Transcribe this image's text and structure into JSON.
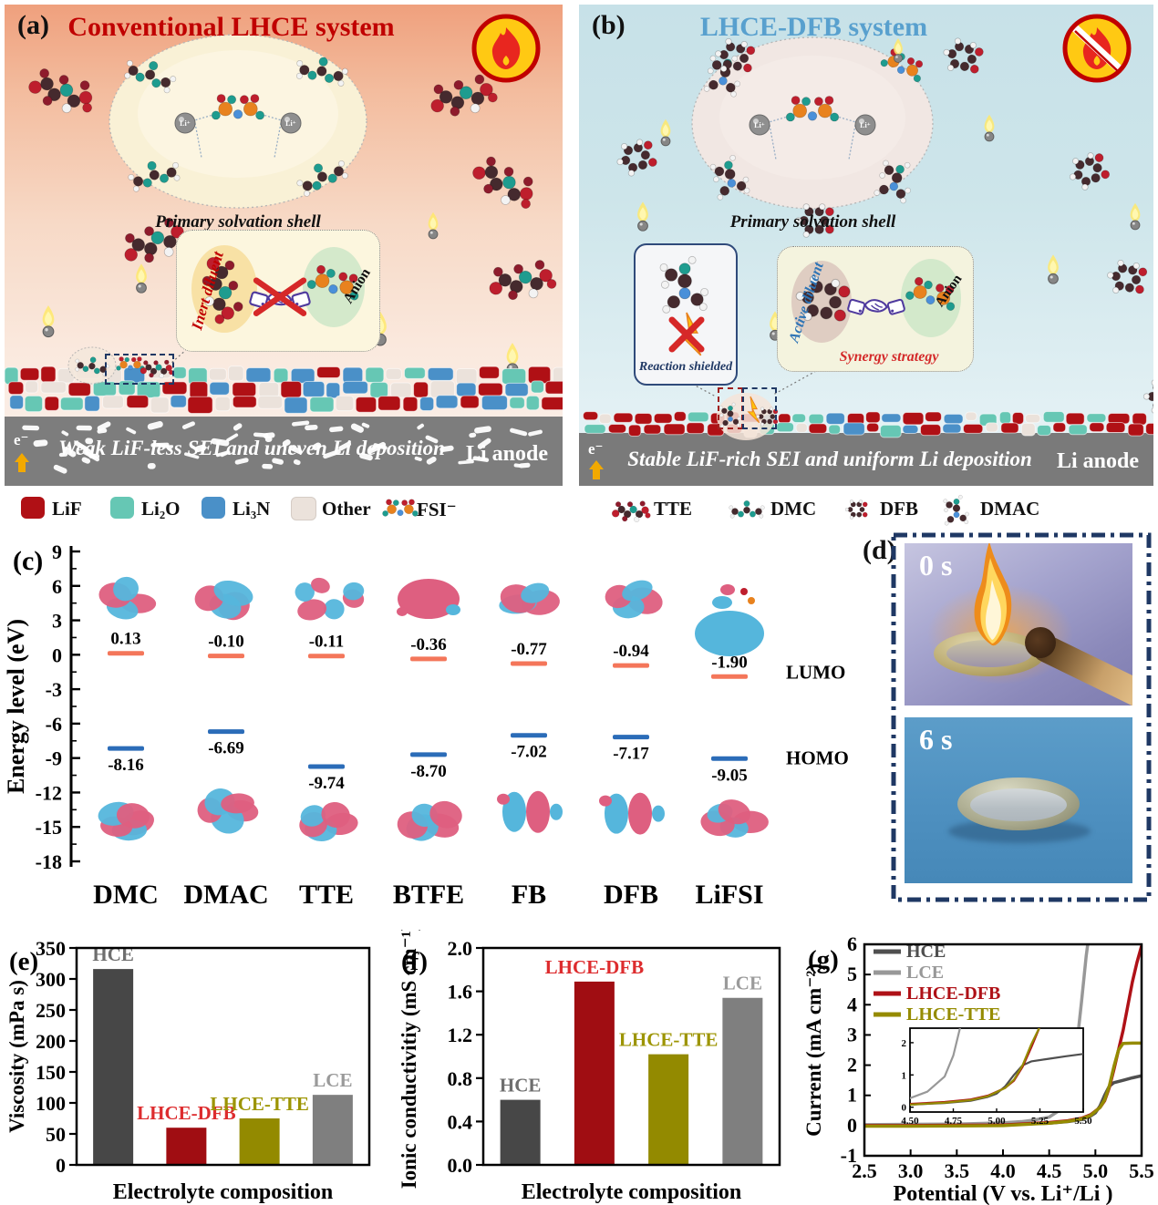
{
  "panel_a": {
    "label": "(a)",
    "title": "Conventional LHCE system",
    "title_color": "#C00000",
    "solvation_shell_label": "Primary solvation shell",
    "inert_diluent_label": "Inert diluent",
    "anion_label": "Anion",
    "sei_caption": "Weak LiF-less SEI and uneven Li deposition",
    "anode_label": "Li anode",
    "electron_label": "e⁻",
    "legend": [
      {
        "label": "LiF",
        "color": "#B01015"
      },
      {
        "label": "Li₂O",
        "color": "#66C7B4"
      },
      {
        "label": "Li₃N",
        "color": "#4A90C8"
      },
      {
        "label": "Other",
        "color": "#EBE2DB"
      },
      {
        "label": "FSI⁻",
        "icon": "fsi-molecule"
      }
    ]
  },
  "panel_b": {
    "label": "(b)",
    "title": "LHCE-DFB system",
    "title_color": "#58A0CE",
    "solvation_shell_label": "Primary solvation shell",
    "reaction_shielded_label": "Reaction shielded",
    "active_diluent_label": "Active diluent",
    "anion_label": "Anion",
    "synergy_label": "Synergy strategy",
    "sei_caption": "Stable LiF-rich SEI and uniform Li deposition",
    "anode_label": "Li anode",
    "electron_label": "e⁻",
    "legend": [
      {
        "label": "TTE",
        "icon": "tte-molecule"
      },
      {
        "label": "DMC",
        "icon": "dmc-molecule"
      },
      {
        "label": "DFB",
        "icon": "dfb-molecule"
      },
      {
        "label": "DMAC",
        "icon": "dmac-molecule"
      }
    ]
  },
  "panel_c": {
    "label": "(c)",
    "lumo_label": "LUMO",
    "homo_label": "HOMO"
  },
  "panel_d": {
    "label": "(d)",
    "frames": [
      {
        "time": "0 s"
      },
      {
        "time": "6 s"
      }
    ]
  },
  "panel_e": {
    "label": "(e)"
  },
  "panel_f": {
    "label": "(f)"
  },
  "panel_g": {
    "label": "(g)"
  },
  "chart_data": [
    {
      "id": "energy-levels",
      "type": "scatter",
      "ylabel": "Energy level (eV)",
      "ylim": [
        -18,
        9
      ],
      "ytick_step": 3,
      "categories": [
        "DMC",
        "DMAC",
        "TTE",
        "BTFE",
        "FB",
        "DFB",
        "LiFSI"
      ],
      "series": [
        {
          "name": "LUMO",
          "color": "#F4765A",
          "values": [
            0.13,
            -0.1,
            -0.11,
            -0.36,
            -0.77,
            -0.94,
            -1.9
          ],
          "labels": [
            "0.13",
            "-0.10",
            "-0.11",
            "-0.36",
            "-0.77",
            "-0.94",
            "-1.90"
          ]
        },
        {
          "name": "HOMO",
          "color": "#2B6CB8",
          "values": [
            -8.16,
            -6.69,
            -9.74,
            -8.7,
            -7.02,
            -7.17,
            -9.05
          ],
          "labels": [
            "-8.16",
            "-6.69",
            "-9.74",
            "-8.70",
            "-7.02",
            "-7.17",
            "-9.05"
          ]
        }
      ]
    },
    {
      "id": "viscosity",
      "type": "bar",
      "xlabel": "Electrolyte composition",
      "ylabel": "Viscosity (mPa s)",
      "ylim": [
        0,
        350
      ],
      "ytick_step": 50,
      "tick_decimals": 0,
      "categories": [
        "HCE",
        "LHCE-DFB",
        "LHCE-TTE",
        "LCE"
      ],
      "values": [
        316,
        60,
        75,
        113
      ],
      "bar_colors": [
        "#474747",
        "#A00D12",
        "#938A00",
        "#7F7F7F"
      ],
      "label_colors": [
        "#6E6E6E",
        "#DD2C2E",
        "#9C9400",
        "#9A9A9A"
      ]
    },
    {
      "id": "ionic-conductivity",
      "type": "bar",
      "xlabel": "Electrolyte composition",
      "ylabel": "Ionic conductivitiy (mS cm⁻¹)",
      "ylim": [
        0,
        2.0
      ],
      "ytick_step": 0.4,
      "tick_decimals": 1,
      "categories": [
        "HCE",
        "LHCE-DFB",
        "LHCE-TTE",
        "LCE"
      ],
      "values": [
        0.6,
        1.69,
        1.02,
        1.54
      ],
      "bar_colors": [
        "#474747",
        "#A00D12",
        "#938A00",
        "#7F7F7F"
      ],
      "label_colors": [
        "#6E6E6E",
        "#DD2C2E",
        "#9C9400",
        "#9A9A9A"
      ]
    },
    {
      "id": "lsv",
      "type": "line",
      "xlabel": "Potential (V vs. Li⁺/Li )",
      "ylabel": "Current (mA cm⁻²)",
      "xlim": [
        2.5,
        5.5
      ],
      "ylim": [
        -1,
        6
      ],
      "xtick_step": 0.5,
      "ytick_step": 1,
      "legend_position": "top-left",
      "series": [
        {
          "name": "HCE",
          "color": "#4F4F4F",
          "points": [
            [
              2.5,
              0.02
            ],
            [
              3.0,
              0.02
            ],
            [
              3.5,
              0.02
            ],
            [
              4.0,
              0.04
            ],
            [
              4.3,
              0.06
            ],
            [
              4.5,
              0.08
            ],
            [
              4.7,
              0.13
            ],
            [
              4.85,
              0.2
            ],
            [
              4.95,
              0.32
            ],
            [
              5.0,
              0.42
            ],
            [
              5.05,
              0.65
            ],
            [
              5.1,
              1.0
            ],
            [
              5.15,
              1.3
            ],
            [
              5.2,
              1.42
            ],
            [
              5.3,
              1.5
            ],
            [
              5.4,
              1.58
            ],
            [
              5.5,
              1.65
            ]
          ]
        },
        {
          "name": "LCE",
          "color": "#989898",
          "points": [
            [
              2.5,
              0.03
            ],
            [
              3.0,
              0.04
            ],
            [
              3.5,
              0.05
            ],
            [
              4.0,
              0.09
            ],
            [
              4.2,
              0.13
            ],
            [
              4.35,
              0.19
            ],
            [
              4.5,
              0.28
            ],
            [
              4.6,
              0.48
            ],
            [
              4.7,
              0.95
            ],
            [
              4.75,
              1.6
            ],
            [
              4.8,
              2.7
            ],
            [
              4.85,
              4.1
            ],
            [
              4.9,
              5.6
            ],
            [
              4.93,
              6.3
            ]
          ]
        },
        {
          "name": "LHCE-DFB",
          "color": "#AF1117",
          "points": [
            [
              2.5,
              0.0
            ],
            [
              3.0,
              0.0
            ],
            [
              3.5,
              0.01
            ],
            [
              4.0,
              0.02
            ],
            [
              4.5,
              0.1
            ],
            [
              4.7,
              0.16
            ],
            [
              4.85,
              0.24
            ],
            [
              4.95,
              0.36
            ],
            [
              5.05,
              0.6
            ],
            [
              5.1,
              0.82
            ],
            [
              5.15,
              1.25
            ],
            [
              5.2,
              1.85
            ],
            [
              5.3,
              3.15
            ],
            [
              5.4,
              4.75
            ],
            [
              5.45,
              5.4
            ],
            [
              5.5,
              5.95
            ]
          ]
        },
        {
          "name": "LHCE-TTE",
          "color": "#958B00",
          "points": [
            [
              2.5,
              -0.02
            ],
            [
              3.0,
              -0.02
            ],
            [
              3.5,
              -0.01
            ],
            [
              4.0,
              0.0
            ],
            [
              4.5,
              0.08
            ],
            [
              4.7,
              0.14
            ],
            [
              4.85,
              0.22
            ],
            [
              4.95,
              0.34
            ],
            [
              5.05,
              0.6
            ],
            [
              5.1,
              0.85
            ],
            [
              5.15,
              1.3
            ],
            [
              5.2,
              1.95
            ],
            [
              5.25,
              2.5
            ],
            [
              5.3,
              2.72
            ],
            [
              5.4,
              2.73
            ],
            [
              5.5,
              2.73
            ]
          ]
        }
      ],
      "inset": {
        "xlim": [
          4.5,
          5.5
        ],
        "ylim": [
          -0.15,
          2.45
        ],
        "xtick_labels": [
          "4.50",
          "4.75",
          "5.00",
          "5.25",
          "5.50"
        ],
        "yticks": [
          0,
          1,
          2
        ]
      }
    }
  ]
}
